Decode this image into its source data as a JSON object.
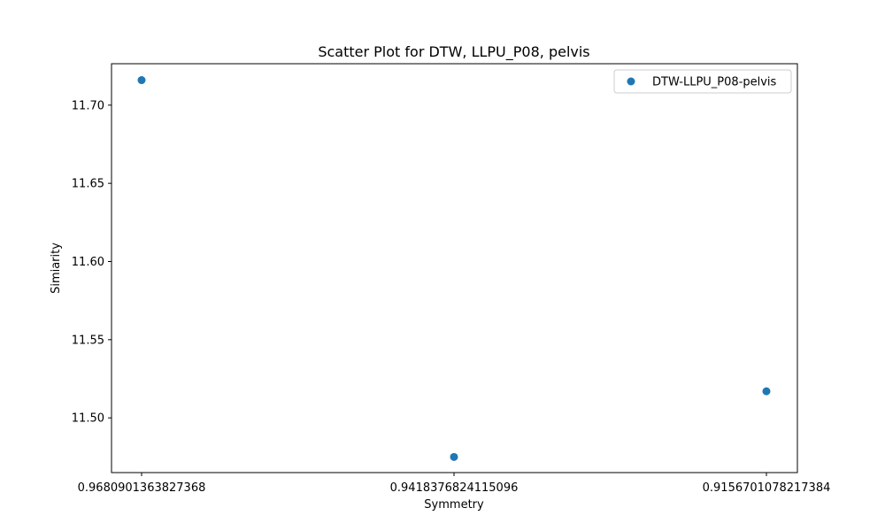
{
  "chart_data": {
    "type": "scatter",
    "title": "Scatter Plot for DTW, LLPU_P08, pelvis",
    "xlabel": "Symmetry",
    "ylabel": "Simiarity",
    "x_categories": [
      "0.9680901363827368",
      "0.9418376824115096",
      "0.9156701078217384"
    ],
    "series": [
      {
        "name": "DTW-LLPU_P08-pelvis",
        "color": "#1f77b4",
        "points": [
          {
            "x": "0.9680901363827368",
            "y": 11.716
          },
          {
            "x": "0.9418376824115096",
            "y": 11.475
          },
          {
            "x": "0.9156701078217384",
            "y": 11.517
          }
        ]
      }
    ],
    "ylim": [
      11.465,
      11.7265
    ],
    "y_ticks": [
      "11.50",
      "11.55",
      "11.60",
      "11.65",
      "11.70"
    ],
    "legend_position": "top-right",
    "grid": false
  }
}
